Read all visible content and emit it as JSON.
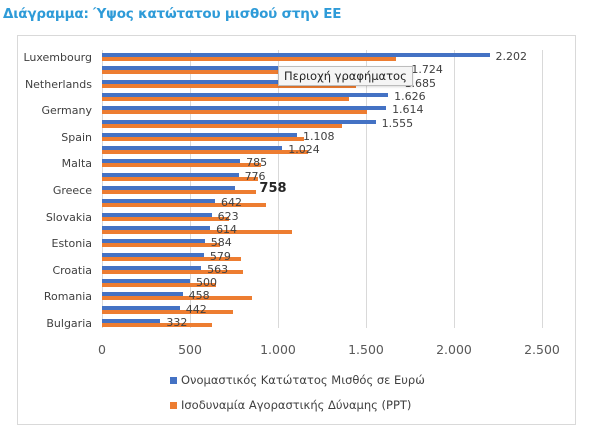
{
  "title": "Διάγραμμα: Ύψος κατώτατου μισθού στην ΕΕ",
  "tooltip": "Περιοχή γραφήματος",
  "colors": {
    "title": "#2e9bd8",
    "series_blue": "#4472c4",
    "series_orange": "#ed7d31",
    "grid": "#d9d9d9"
  },
  "chart_data": {
    "type": "bar",
    "orientation": "horizontal",
    "title": "Διάγραμμα: Ύψος κατώτατου μισθού στην ΕΕ",
    "xlabel": "",
    "ylabel": "",
    "xlim": [
      0,
      2500
    ],
    "x_ticks": [
      "0",
      "500",
      "1.000",
      "1.500",
      "2.000",
      "2.500"
    ],
    "grid": true,
    "legend_position": "bottom",
    "categories_shown": [
      "Luxembourg",
      "Netherlands",
      "Germany",
      "Spain",
      "Malta",
      "Greece",
      "Slovakia",
      "Estonia",
      "Croatia",
      "Romania",
      "Bulgaria"
    ],
    "rows": [
      {
        "label": "Luxembourg",
        "blue": 2202,
        "orange": 1668,
        "value_label": "2.202"
      },
      {
        "label": "",
        "blue": 1724,
        "orange": 1550,
        "value_label": "1.724"
      },
      {
        "label": "Netherlands",
        "blue": 1685,
        "orange": 1446,
        "value_label": "1.685"
      },
      {
        "label": "",
        "blue": 1626,
        "orange": 1406,
        "value_label": "1.626"
      },
      {
        "label": "Germany",
        "blue": 1614,
        "orange": 1503,
        "value_label": "1.614"
      },
      {
        "label": "",
        "blue": 1555,
        "orange": 1366,
        "value_label": "1.555"
      },
      {
        "label": "Spain",
        "blue": 1108,
        "orange": 1150,
        "value_label": "1.108"
      },
      {
        "label": "",
        "blue": 1024,
        "orange": 1173,
        "value_label": "1.024"
      },
      {
        "label": "Malta",
        "blue": 785,
        "orange": 906,
        "value_label": "785"
      },
      {
        "label": "",
        "blue": 776,
        "orange": 884,
        "value_label": "776"
      },
      {
        "label": "Greece",
        "blue": 758,
        "orange": 877,
        "value_label": "758",
        "highlight": true
      },
      {
        "label": "",
        "blue": 642,
        "orange": 934,
        "value_label": "642"
      },
      {
        "label": "Slovakia",
        "blue": 623,
        "orange": 719,
        "value_label": "623"
      },
      {
        "label": "",
        "blue": 614,
        "orange": 1082,
        "value_label": "614"
      },
      {
        "label": "Estonia",
        "blue": 584,
        "orange": 670,
        "value_label": "584"
      },
      {
        "label": "",
        "blue": 579,
        "orange": 787,
        "value_label": "579"
      },
      {
        "label": "Croatia",
        "blue": 563,
        "orange": 803,
        "value_label": "563"
      },
      {
        "label": "",
        "blue": 500,
        "orange": 650,
        "value_label": "500"
      },
      {
        "label": "Romania",
        "blue": 458,
        "orange": 850,
        "value_label": "458"
      },
      {
        "label": "",
        "blue": 442,
        "orange": 744,
        "value_label": "442"
      },
      {
        "label": "Bulgaria",
        "blue": 332,
        "orange": 625,
        "value_label": "332"
      }
    ],
    "series": [
      {
        "name": "Ονομαστικός Κατώτατος Μισθός σε Ευρώ",
        "color": "#4472c4"
      },
      {
        "name": "Ισοδυναμία Αγοραστικής Δύναμης (PPT)",
        "color": "#ed7d31"
      }
    ]
  },
  "legend": [
    {
      "label": "Ονομαστικός Κατώτατος Μισθός σε Ευρώ",
      "icon": "blue-square"
    },
    {
      "label": "Ισοδυναμία Αγοραστικής Δύναμης (PPT)",
      "icon": "orange-square"
    }
  ]
}
